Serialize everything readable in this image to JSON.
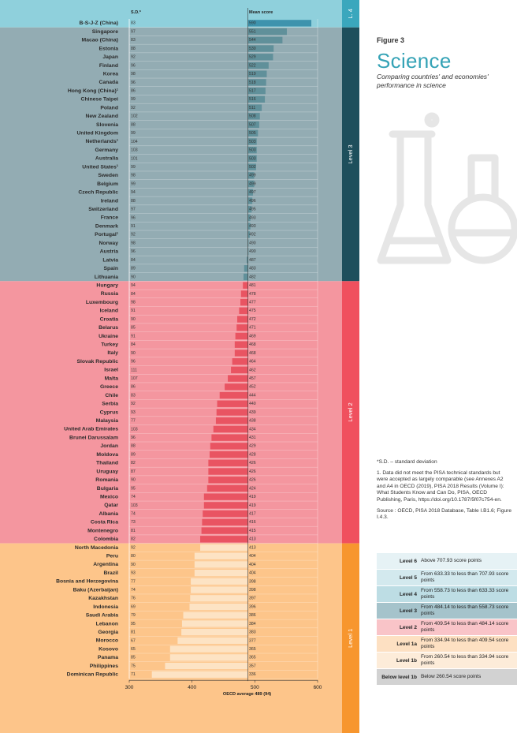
{
  "figure": {
    "label": "Figure 3",
    "title": "Science",
    "subtitle": "Comparing countries' and economies' performance in science"
  },
  "notes": {
    "sd_note": "*S.D. – standard deviation",
    "note_1": "1. Data did not meet the PISA technical standards but were accepted as largely comparable (see Annexes A2 and A4 in OECD (2019), PISA 2018 Results (Volume I): What Students Know and Can Do, PISA, OECD Publishing, Paris, https://doi.org/10.1787/5f07c754-en.",
    "source": "Source : OECD, PISA 2018 Database, Table I.B1.6; Figure I.4.3."
  },
  "legend": [
    {
      "level": "Level 6",
      "desc": "Above 707.93 score points",
      "color": "#e6f2f5"
    },
    {
      "level": "Level 5",
      "desc": "From 633.33 to less than 707.93 score points",
      "color": "#d3e9ee"
    },
    {
      "level": "Level 4",
      "desc": "From 558.73 to less than 633.33 score points",
      "color": "#bddde4"
    },
    {
      "level": "Level 3",
      "desc": "From 484.14 to less than 558.73 score points",
      "color": "#a5c3cb"
    },
    {
      "level": "Level 2",
      "desc": "From 409.54 to less than 484.14 score points",
      "color": "#f9c4c8"
    },
    {
      "level": "Level 1a",
      "desc": "From 334.94 to less than 409.54 score points",
      "color": "#fde0c2"
    },
    {
      "level": "Level 1b",
      "desc": "From 260.54 to less than 334.94 score points",
      "color": "#fdecd9"
    },
    {
      "level": "Below level 1b",
      "desc": "Below 260.54 score points",
      "color": "#d2d2d2"
    }
  ],
  "chart_data": {
    "type": "bar",
    "orientation": "horizontal",
    "sd_header": "S.D.*",
    "score_header": "Mean score",
    "xlabel": "OECD average 489 (94)",
    "oecd_average": 489,
    "xlim": [
      300,
      600
    ],
    "xticks": [
      300,
      400,
      500,
      600
    ],
    "levels": [
      {
        "label": "L. 4",
        "from": 0,
        "to": 0,
        "bg": "#8fd0dc",
        "strip": "#3aa7bd",
        "bar": "#3a8faa"
      },
      {
        "label": "Level 3",
        "from": 1,
        "to": 30,
        "bg": "#93acb3",
        "strip": "#1e4f5c",
        "bar": "#5d8e99"
      },
      {
        "label": "Level 2",
        "from": 31,
        "to": 61,
        "bg": "#f4969f",
        "strip": "#f0505e",
        "bar": "#e8505f"
      },
      {
        "label": "Level 1",
        "from": 62,
        "to": 77,
        "bg": "#fdc58a",
        "strip": "#f7962e",
        "bar": "#fdc58a"
      }
    ],
    "rows": [
      {
        "country": "B-S-J-Z (China)",
        "sd": "83",
        "score": 590
      },
      {
        "country": "Singapore",
        "sd": "97",
        "score": 551
      },
      {
        "country": "Macao (China)",
        "sd": "83",
        "score": 544
      },
      {
        "country": "Estonia",
        "sd": "88",
        "score": 530
      },
      {
        "country": "Japan",
        "sd": "92",
        "score": 529
      },
      {
        "country": "Finland",
        "sd": "96",
        "score": 522
      },
      {
        "country": "Korea",
        "sd": "98",
        "score": 519
      },
      {
        "country": "Canada",
        "sd": "96",
        "score": 518
      },
      {
        "country": "Hong Kong (China)¹",
        "sd": "86",
        "score": 517
      },
      {
        "country": "Chinese Taipei",
        "sd": "99",
        "score": 516
      },
      {
        "country": "Poland",
        "sd": "92",
        "score": 511
      },
      {
        "country": "New Zealand",
        "sd": "102",
        "score": 508
      },
      {
        "country": "Slovenia",
        "sd": "88",
        "score": 507
      },
      {
        "country": "United Kingdom",
        "sd": "99",
        "score": 505
      },
      {
        "country": "Netherlands¹",
        "sd": "104",
        "score": 503
      },
      {
        "country": "Germany",
        "sd": "103",
        "score": 503
      },
      {
        "country": "Australia",
        "sd": "101",
        "score": 503
      },
      {
        "country": "United States¹",
        "sd": "99",
        "score": 502
      },
      {
        "country": "Sweden",
        "sd": "98",
        "score": 499
      },
      {
        "country": "Belgium",
        "sd": "99",
        "score": 499
      },
      {
        "country": "Czech Republic",
        "sd": "94",
        "score": 497
      },
      {
        "country": "Ireland",
        "sd": "88",
        "score": 496
      },
      {
        "country": "Switzerland",
        "sd": "97",
        "score": 495
      },
      {
        "country": "France",
        "sd": "96",
        "score": 493
      },
      {
        "country": "Denmark",
        "sd": "91",
        "score": 493
      },
      {
        "country": "Portugal¹",
        "sd": "92",
        "score": 492
      },
      {
        "country": "Norway",
        "sd": "98",
        "score": 490
      },
      {
        "country": "Austria",
        "sd": "96",
        "score": 490
      },
      {
        "country": "Latvia",
        "sd": "84",
        "score": 487
      },
      {
        "country": "Spain",
        "sd": "89",
        "score": 483
      },
      {
        "country": "Lithuania",
        "sd": "90",
        "score": 482
      },
      {
        "country": "Hungary",
        "sd": "94",
        "score": 481
      },
      {
        "country": "Russia",
        "sd": "84",
        "score": 478
      },
      {
        "country": "Luxembourg",
        "sd": "98",
        "score": 477
      },
      {
        "country": "Iceland",
        "sd": "91",
        "score": 475
      },
      {
        "country": "Croatia",
        "sd": "90",
        "score": 472
      },
      {
        "country": "Belarus",
        "sd": "85",
        "score": 471
      },
      {
        "country": "Ukraine",
        "sd": "91",
        "score": 469
      },
      {
        "country": "Turkey",
        "sd": "84",
        "score": 468
      },
      {
        "country": "Italy",
        "sd": "90",
        "score": 468
      },
      {
        "country": "Slovak Republic",
        "sd": "96",
        "score": 464
      },
      {
        "country": "Israel",
        "sd": "111",
        "score": 462
      },
      {
        "country": "Malta",
        "sd": "107",
        "score": 457
      },
      {
        "country": "Greece",
        "sd": "86",
        "score": 452
      },
      {
        "country": "Chile",
        "sd": "83",
        "score": 444
      },
      {
        "country": "Serbia",
        "sd": "92",
        "score": 440
      },
      {
        "country": "Cyprus",
        "sd": "93",
        "score": 439
      },
      {
        "country": "Malaysia",
        "sd": "77",
        "score": 438
      },
      {
        "country": "United Arab Emirates",
        "sd": "103",
        "score": 434
      },
      {
        "country": "Brunei Darussalam",
        "sd": "96",
        "score": 431
      },
      {
        "country": "Jordan",
        "sd": "88",
        "score": 429
      },
      {
        "country": "Moldova",
        "sd": "89",
        "score": 428
      },
      {
        "country": "Thailand",
        "sd": "82",
        "score": 426
      },
      {
        "country": "Uruguay",
        "sd": "87",
        "score": 426
      },
      {
        "country": "Romania",
        "sd": "90",
        "score": 426
      },
      {
        "country": "Bulgaria",
        "sd": "95",
        "score": 424
      },
      {
        "country": "Mexico",
        "sd": "74",
        "score": 419
      },
      {
        "country": "Qatar",
        "sd": "103",
        "score": 419
      },
      {
        "country": "Albania",
        "sd": "74",
        "score": 417
      },
      {
        "country": "Costa Rica",
        "sd": "73",
        "score": 416
      },
      {
        "country": "Montenegro",
        "sd": "81",
        "score": 415
      },
      {
        "country": "Colombia",
        "sd": "82",
        "score": 413
      },
      {
        "country": "North Macedonia",
        "sd": "92",
        "score": 413
      },
      {
        "country": "Peru",
        "sd": "80",
        "score": 404
      },
      {
        "country": "Argentina",
        "sd": "90",
        "score": 404
      },
      {
        "country": "Brazil",
        "sd": "93",
        "score": 404
      },
      {
        "country": "Bosnia and Herzegovina",
        "sd": "77",
        "score": 398
      },
      {
        "country": "Baku (Azerbaijan)",
        "sd": "74",
        "score": 398
      },
      {
        "country": "Kazakhstan",
        "sd": "76",
        "score": 397
      },
      {
        "country": "Indonesia",
        "sd": "69",
        "score": 396
      },
      {
        "country": "Saudi Arabia",
        "sd": "79",
        "score": 386
      },
      {
        "country": "Lebanon",
        "sd": "95",
        "score": 384
      },
      {
        "country": "Georgia",
        "sd": "81",
        "score": 383
      },
      {
        "country": "Morocco",
        "sd": "67",
        "score": 377
      },
      {
        "country": "Kosovo",
        "sd": "65",
        "score": 365
      },
      {
        "country": "Panama",
        "sd": "85",
        "score": 365
      },
      {
        "country": "Philippines",
        "sd": "75",
        "score": 357
      },
      {
        "country": "Dominican Republic",
        "sd": "71",
        "score": 336
      }
    ]
  }
}
